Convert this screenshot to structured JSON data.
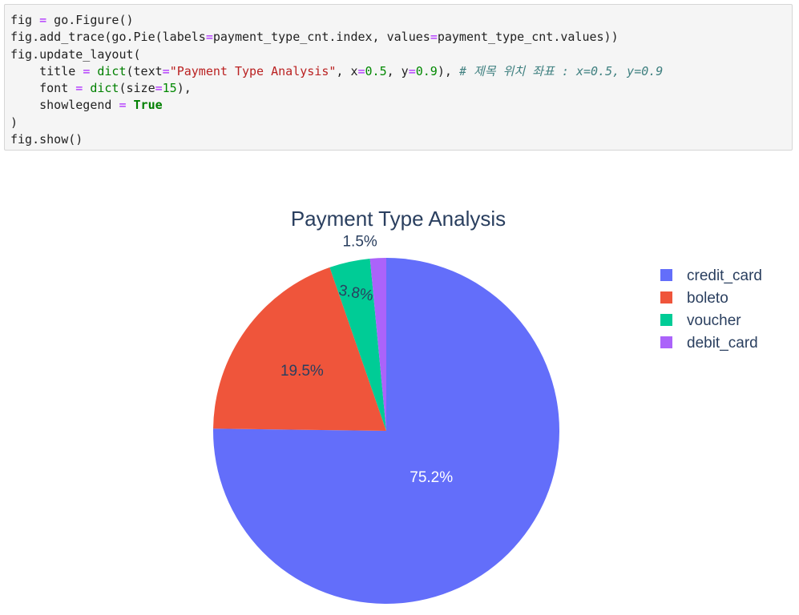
{
  "code": {
    "lines": [
      [
        {
          "t": "fig "
        },
        {
          "t": "=",
          "c": "op"
        },
        {
          "t": " go.Figure()"
        }
      ],
      [
        {
          "t": "fig.add_trace(go.Pie(labels"
        },
        {
          "t": "=",
          "c": "op"
        },
        {
          "t": "payment_type_cnt.index, values"
        },
        {
          "t": "=",
          "c": "op"
        },
        {
          "t": "payment_type_cnt.values))"
        }
      ],
      [
        {
          "t": "fig.update_layout("
        }
      ],
      [
        {
          "t": "    title "
        },
        {
          "t": "=",
          "c": "op"
        },
        {
          "t": " "
        },
        {
          "t": "dict",
          "c": "fn"
        },
        {
          "t": "(text"
        },
        {
          "t": "=",
          "c": "op"
        },
        {
          "t": "\"Payment Type Analysis\"",
          "c": "str"
        },
        {
          "t": ", x"
        },
        {
          "t": "=",
          "c": "op"
        },
        {
          "t": "0.5",
          "c": "num"
        },
        {
          "t": ", y"
        },
        {
          "t": "=",
          "c": "op"
        },
        {
          "t": "0.9",
          "c": "num"
        },
        {
          "t": "), "
        },
        {
          "t": "# 제목 위치 좌표 : x=0.5, y=0.9",
          "c": "com"
        }
      ],
      [
        {
          "t": "    font "
        },
        {
          "t": "=",
          "c": "op"
        },
        {
          "t": " "
        },
        {
          "t": "dict",
          "c": "fn"
        },
        {
          "t": "(size"
        },
        {
          "t": "=",
          "c": "op"
        },
        {
          "t": "15",
          "c": "num"
        },
        {
          "t": "),"
        }
      ],
      [
        {
          "t": "    showlegend "
        },
        {
          "t": "=",
          "c": "op"
        },
        {
          "t": " "
        },
        {
          "t": "True",
          "c": "kw"
        }
      ],
      [
        {
          "t": ")"
        }
      ],
      [
        {
          "t": "fig.show()"
        }
      ]
    ]
  },
  "chart_data": {
    "type": "pie",
    "title": "Payment Type Analysis",
    "labels": [
      "credit_card",
      "boleto",
      "voucher",
      "debit_card"
    ],
    "values": [
      75.2,
      19.5,
      3.8,
      1.5
    ],
    "text_labels": [
      "75.2%",
      "19.5%",
      "3.8%",
      "1.5%"
    ],
    "colors": [
      "#636efa",
      "#EF553B",
      "#00cc96",
      "#ab63fa"
    ],
    "legend_position": "right"
  }
}
